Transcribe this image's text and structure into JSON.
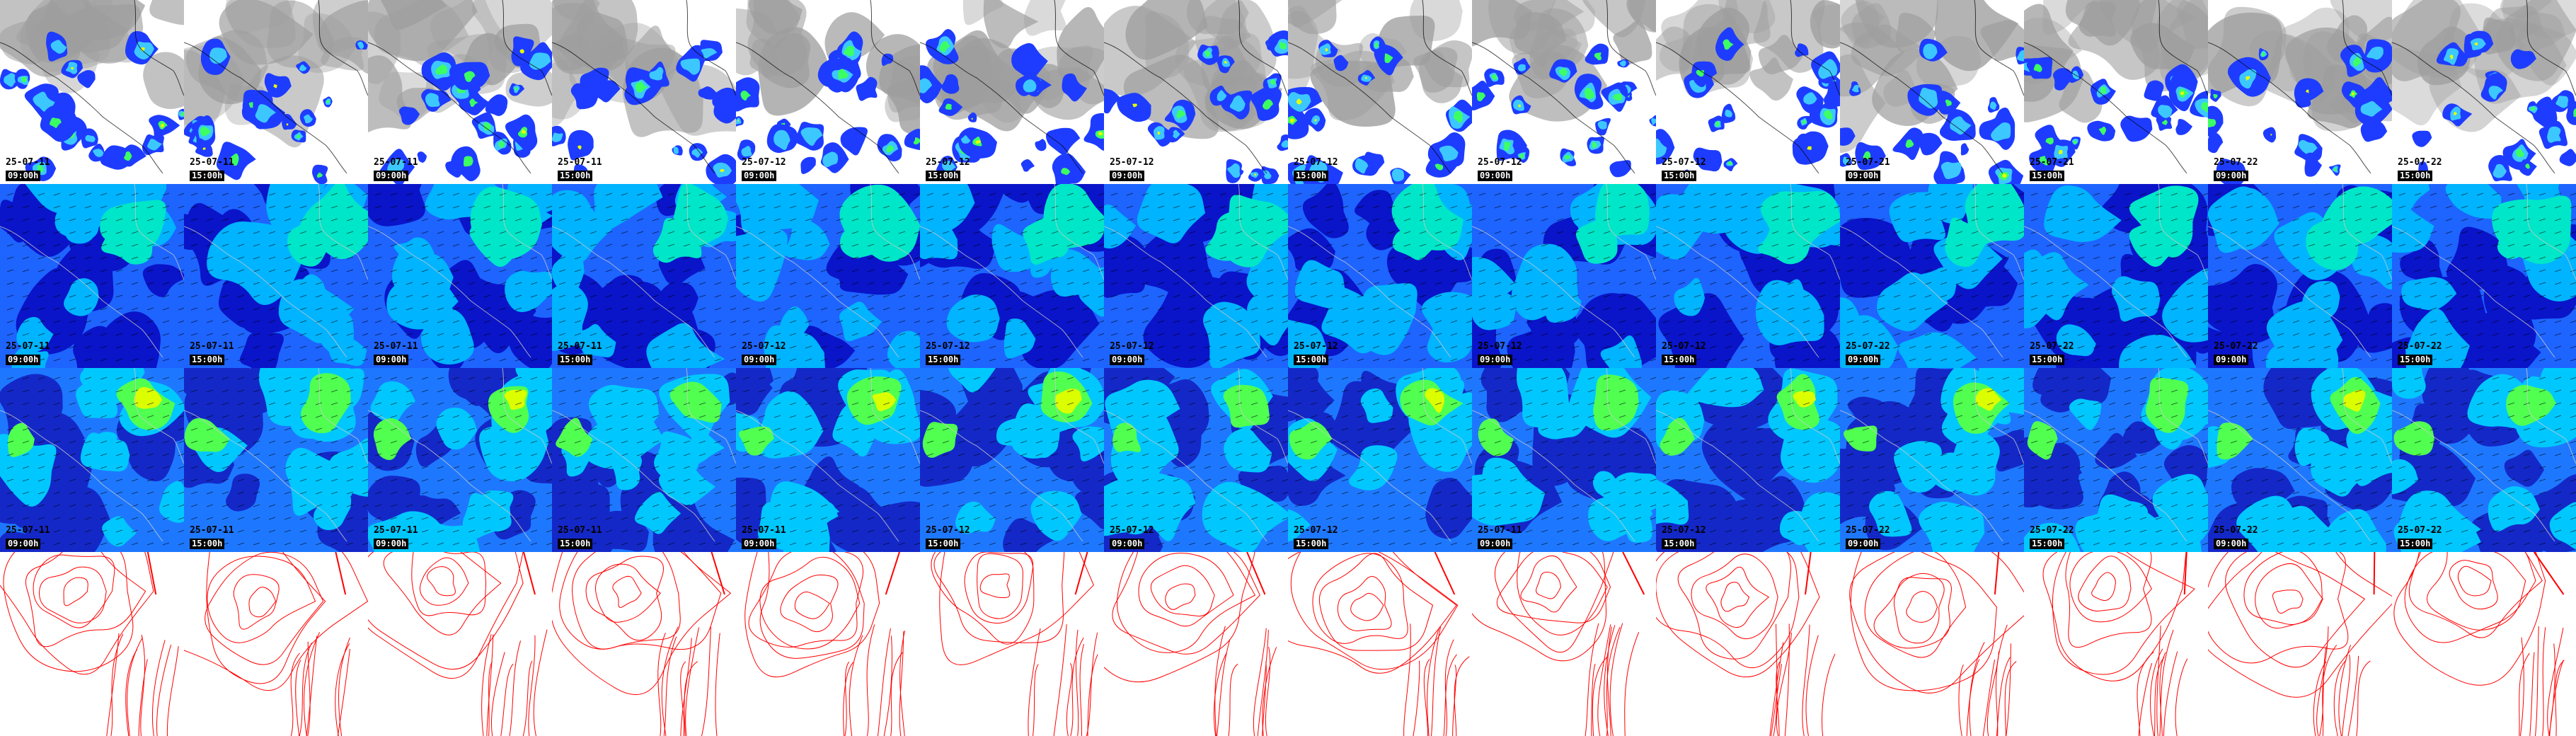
{
  "rows": [
    {
      "id": "precipitation",
      "colors": {
        "background": "#ffffff",
        "cloud": "#9e9e9e",
        "blue": "#1e3cff",
        "light": "#3cc8ff",
        "green": "#3cff64",
        "yellow": "#e6ff00",
        "coast": "#000000"
      },
      "panels": [
        {
          "date": "25-07-11",
          "time": "09:00h"
        },
        {
          "date": "25-07-11",
          "time": "15:00h"
        },
        {
          "date": "25-07-11",
          "time": "09:00h"
        },
        {
          "date": "25-07-11",
          "time": "15:00h"
        },
        {
          "date": "25-07-12",
          "time": "09:00h"
        },
        {
          "date": "25-07-12",
          "time": "15:00h"
        },
        {
          "date": "25-07-12",
          "time": "09:00h"
        },
        {
          "date": "25-07-12",
          "time": "15:00h"
        },
        {
          "date": "25-07-12",
          "time": "09:00h"
        },
        {
          "date": "25-07-12",
          "time": "15:00h"
        },
        {
          "date": "25-07-21",
          "time": "09:00h"
        },
        {
          "date": "25-07-21",
          "time": "15:00h"
        },
        {
          "date": "25-07-22",
          "time": "09:00h"
        },
        {
          "date": "25-07-22",
          "time": "15:00h"
        }
      ]
    },
    {
      "id": "wind-low",
      "colors": {
        "deep": "#0a14c8",
        "mid": "#1e64ff",
        "light": "#00b4ff",
        "cyan": "#00e6c8",
        "arrow": "#000000"
      },
      "panels": [
        {
          "date": "25-07-11",
          "time": "09:00h"
        },
        {
          "date": "25-07-11",
          "time": "15:00h"
        },
        {
          "date": "25-07-11",
          "time": "09:00h"
        },
        {
          "date": "25-07-11",
          "time": "15:00h"
        },
        {
          "date": "25-07-12",
          "time": "09:00h"
        },
        {
          "date": "25-07-12",
          "time": "15:00h"
        },
        {
          "date": "25-07-12",
          "time": "09:00h"
        },
        {
          "date": "25-07-12",
          "time": "15:00h"
        },
        {
          "date": "25-07-12",
          "time": "09:00h"
        },
        {
          "date": "25-07-12",
          "time": "15:00h"
        },
        {
          "date": "25-07-22",
          "time": "09:00h"
        },
        {
          "date": "25-07-22",
          "time": "15:00h"
        },
        {
          "date": "25-07-22",
          "time": "09:00h"
        },
        {
          "date": "25-07-22",
          "time": "15:00h"
        }
      ]
    },
    {
      "id": "wind-high",
      "colors": {
        "deep": "#1428c8",
        "mid": "#1e78ff",
        "light": "#00c8ff",
        "green": "#50ff50",
        "yellow": "#dcff00",
        "arrow": "#000000"
      },
      "panels": [
        {
          "date": "25-07-11",
          "time": "09:00h"
        },
        {
          "date": "25-07-11",
          "time": "15:00h"
        },
        {
          "date": "25-07-11",
          "time": "09:00h"
        },
        {
          "date": "25-07-11",
          "time": "15:00h"
        },
        {
          "date": "25-07-11",
          "time": "09:00h"
        },
        {
          "date": "25-07-12",
          "time": "15:00h"
        },
        {
          "date": "25-07-12",
          "time": "09:00h"
        },
        {
          "date": "25-07-12",
          "time": "15:00h"
        },
        {
          "date": "25-07-11",
          "time": "09:00h"
        },
        {
          "date": "25-07-12",
          "time": "15:00h"
        },
        {
          "date": "25-07-22",
          "time": "09:00h"
        },
        {
          "date": "25-07-22",
          "time": "15:00h"
        },
        {
          "date": "25-07-22",
          "time": "09:00h"
        },
        {
          "date": "25-07-22",
          "time": "15:00h"
        }
      ]
    },
    {
      "id": "pressure-contours",
      "colors": {
        "background": "#ffffff",
        "contour": "#ff0000"
      },
      "panels": [
        {},
        {},
        {},
        {},
        {},
        {},
        {},
        {},
        {},
        {},
        {},
        {},
        {},
        {}
      ]
    }
  ]
}
